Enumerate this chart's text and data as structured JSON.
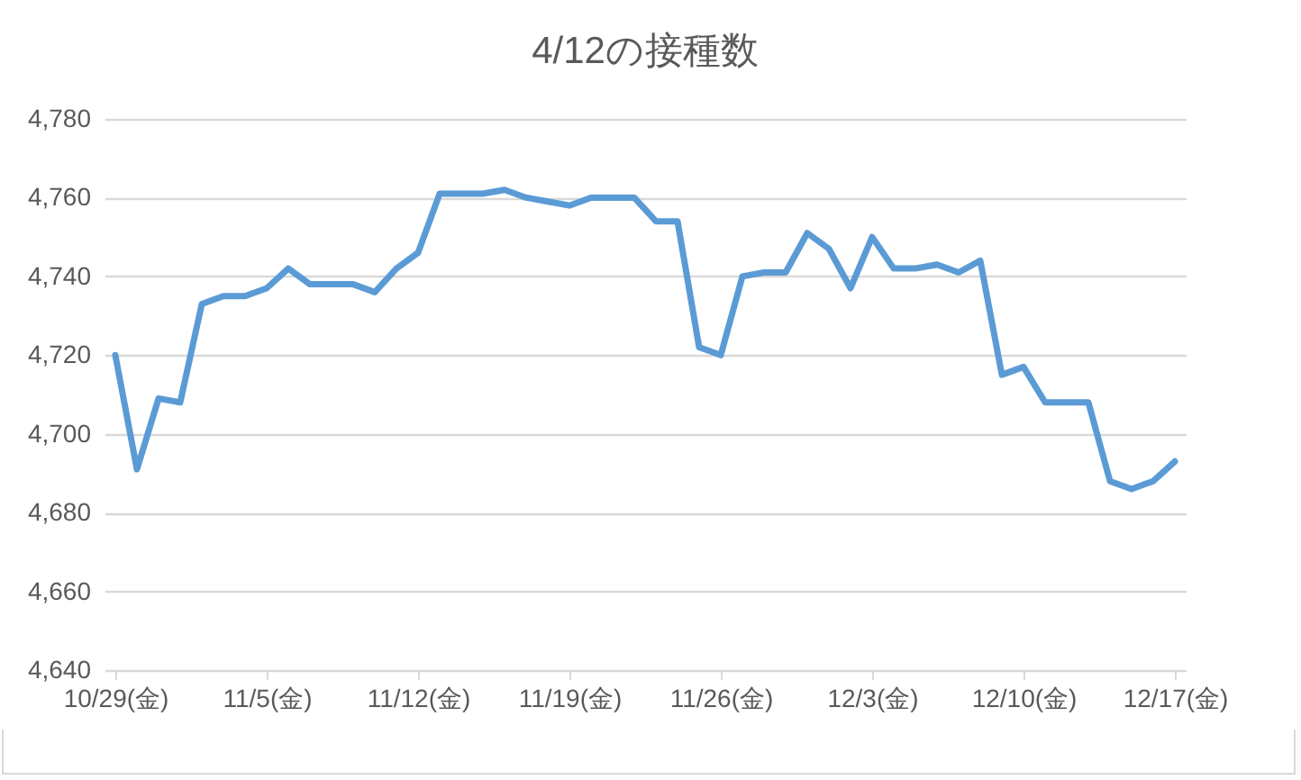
{
  "chart_data": {
    "type": "line",
    "title": "4/12の接種数",
    "categories": [
      "10/29(金)",
      null,
      null,
      null,
      null,
      null,
      null,
      "11/5(金)",
      null,
      null,
      null,
      null,
      null,
      null,
      "11/12(金)",
      null,
      null,
      null,
      null,
      null,
      null,
      "11/19(金)",
      null,
      null,
      null,
      null,
      null,
      null,
      "11/26(金)",
      null,
      null,
      null,
      null,
      null,
      null,
      "12/3(金)",
      null,
      null,
      null,
      null,
      null,
      null,
      "12/10(金)",
      null,
      null,
      null,
      null,
      null,
      null,
      "12/17(金)"
    ],
    "series": [
      {
        "color": "#5b9bd5",
        "values": [
          4720,
          4691,
          4709,
          4708,
          4733,
          4735,
          4735,
          4737,
          4742,
          4738,
          4738,
          4738,
          4736,
          4742,
          4746,
          4761,
          4761,
          4761,
          4762,
          4760,
          4759,
          4758,
          4760,
          4760,
          4760,
          4754,
          4754,
          4722,
          4720,
          4740,
          4741,
          4741,
          4751,
          4747,
          4737,
          4750,
          4742,
          4742,
          4743,
          4741,
          4744,
          4715,
          4717,
          4708,
          4708,
          4708,
          4688,
          4686,
          4688,
          4693
        ]
      }
    ],
    "ylim": [
      4640,
      4780
    ],
    "yticks": [
      {
        "value": 4640,
        "label": "4,640"
      },
      {
        "value": 4660,
        "label": "4,660"
      },
      {
        "value": 4680,
        "label": "4,680"
      },
      {
        "value": 4700,
        "label": "4,700"
      },
      {
        "value": 4720,
        "label": "4,720"
      },
      {
        "value": 4740,
        "label": "4,740"
      },
      {
        "value": 4760,
        "label": "4,760"
      },
      {
        "value": 4780,
        "label": "4,780"
      }
    ],
    "grid": "y",
    "legend": false,
    "marker": "none",
    "line_style": "solid"
  }
}
